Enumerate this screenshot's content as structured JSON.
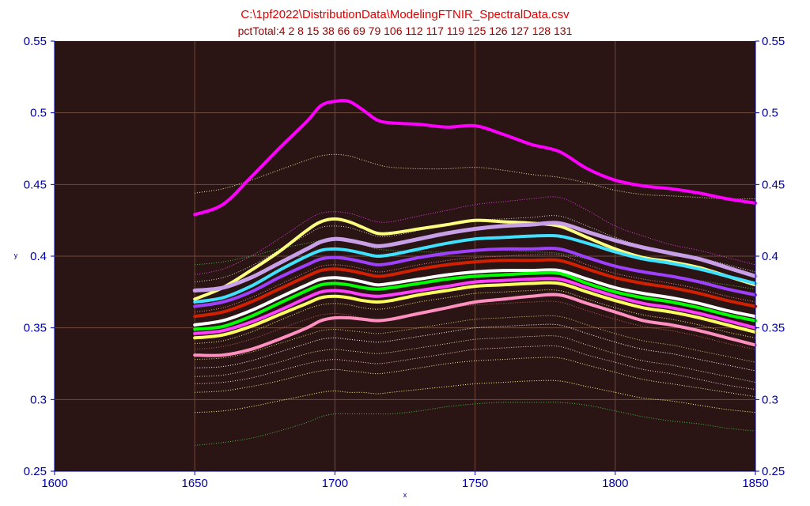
{
  "chart_data": {
    "type": "line",
    "title": "C:\\1pf2022\\DistributionData\\ModelingFTNIR_SpectralData.csv",
    "subtitle": "pctTotal:4 2 8 15 38 66 69 79 106 112 117 119 125 126 127 128 131",
    "xlabel": "x",
    "ylabel": "y",
    "xlim": [
      1600,
      1850
    ],
    "ylim": [
      0.25,
      0.55
    ],
    "x_ticks": [
      "1600",
      "1650",
      "1700",
      "1750",
      "1800",
      "1850"
    ],
    "y_ticks": [
      "0.25",
      "0.3",
      "0.35",
      "0.4",
      "0.45",
      "0.5",
      "0.55"
    ],
    "grid": true,
    "legend": "none",
    "x": [
      1650,
      1660,
      1670,
      1680,
      1690,
      1695,
      1700,
      1705,
      1710,
      1715,
      1720,
      1730,
      1740,
      1750,
      1760,
      1770,
      1780,
      1790,
      1800,
      1810,
      1820,
      1830,
      1840,
      1850
    ],
    "highlighted_series": [
      {
        "color": "#ff00ff",
        "width": 4,
        "values": [
          0.429,
          0.436,
          0.455,
          0.475,
          0.494,
          0.505,
          0.508,
          0.508,
          0.502,
          0.495,
          0.493,
          0.492,
          0.49,
          0.491,
          0.485,
          0.478,
          0.473,
          0.461,
          0.453,
          0.449,
          0.447,
          0.444,
          0.44,
          0.437
        ]
      },
      {
        "color": "#ffff80",
        "width": 4,
        "values": [
          0.37,
          0.378,
          0.39,
          0.403,
          0.418,
          0.424,
          0.426,
          0.424,
          0.42,
          0.416,
          0.416,
          0.419,
          0.422,
          0.425,
          0.424,
          0.423,
          0.421,
          0.413,
          0.405,
          0.399,
          0.396,
          0.392,
          0.386,
          0.38
        ]
      },
      {
        "color": "#c8a0e8",
        "width": 5,
        "values": [
          0.376,
          0.378,
          0.385,
          0.395,
          0.405,
          0.41,
          0.412,
          0.411,
          0.409,
          0.407,
          0.408,
          0.412,
          0.416,
          0.419,
          0.421,
          0.422,
          0.423,
          0.417,
          0.411,
          0.406,
          0.402,
          0.398,
          0.392,
          0.386
        ]
      },
      {
        "color": "#40e0ff",
        "width": 4,
        "values": [
          0.368,
          0.371,
          0.379,
          0.39,
          0.4,
          0.404,
          0.405,
          0.404,
          0.402,
          0.4,
          0.401,
          0.405,
          0.409,
          0.412,
          0.413,
          0.414,
          0.414,
          0.409,
          0.403,
          0.398,
          0.395,
          0.391,
          0.386,
          0.381
        ]
      },
      {
        "color": "#a040ff",
        "width": 4,
        "values": [
          0.365,
          0.368,
          0.375,
          0.385,
          0.394,
          0.398,
          0.399,
          0.398,
          0.396,
          0.394,
          0.395,
          0.399,
          0.402,
          0.404,
          0.405,
          0.405,
          0.405,
          0.399,
          0.393,
          0.389,
          0.386,
          0.382,
          0.377,
          0.373
        ]
      },
      {
        "color": "#d02000",
        "width": 4,
        "values": [
          0.358,
          0.361,
          0.368,
          0.377,
          0.386,
          0.39,
          0.391,
          0.39,
          0.388,
          0.386,
          0.387,
          0.391,
          0.394,
          0.396,
          0.397,
          0.397,
          0.397,
          0.391,
          0.385,
          0.381,
          0.378,
          0.374,
          0.369,
          0.365
        ]
      },
      {
        "color": "#ffffff",
        "width": 4,
        "values": [
          0.352,
          0.355,
          0.362,
          0.371,
          0.38,
          0.384,
          0.385,
          0.384,
          0.382,
          0.38,
          0.381,
          0.384,
          0.387,
          0.389,
          0.39,
          0.39,
          0.39,
          0.384,
          0.378,
          0.374,
          0.371,
          0.367,
          0.362,
          0.358
        ]
      },
      {
        "color": "#00ff00",
        "width": 4,
        "values": [
          0.349,
          0.351,
          0.358,
          0.367,
          0.376,
          0.38,
          0.381,
          0.38,
          0.378,
          0.377,
          0.378,
          0.381,
          0.384,
          0.386,
          0.387,
          0.388,
          0.388,
          0.381,
          0.375,
          0.371,
          0.368,
          0.364,
          0.359,
          0.355
        ]
      },
      {
        "color": "#ff40ff",
        "width": 4,
        "values": [
          0.346,
          0.348,
          0.354,
          0.362,
          0.371,
          0.375,
          0.376,
          0.375,
          0.373,
          0.372,
          0.373,
          0.376,
          0.379,
          0.382,
          0.383,
          0.384,
          0.384,
          0.378,
          0.372,
          0.367,
          0.364,
          0.36,
          0.355,
          0.35
        ]
      },
      {
        "color": "#ffff60",
        "width": 4,
        "values": [
          0.343,
          0.345,
          0.351,
          0.359,
          0.367,
          0.371,
          0.372,
          0.371,
          0.369,
          0.368,
          0.369,
          0.373,
          0.376,
          0.379,
          0.38,
          0.381,
          0.381,
          0.375,
          0.369,
          0.364,
          0.361,
          0.357,
          0.352,
          0.347
        ]
      },
      {
        "color": "#ff90c0",
        "width": 4,
        "values": [
          0.331,
          0.331,
          0.335,
          0.342,
          0.35,
          0.355,
          0.357,
          0.357,
          0.356,
          0.355,
          0.356,
          0.36,
          0.364,
          0.368,
          0.37,
          0.372,
          0.373,
          0.367,
          0.361,
          0.355,
          0.352,
          0.348,
          0.343,
          0.338
        ]
      }
    ],
    "background_series": [
      {
        "color": "#e8e8a0",
        "values": [
          0.444,
          0.447,
          0.453,
          0.46,
          0.467,
          0.47,
          0.471,
          0.47,
          0.467,
          0.464,
          0.462,
          0.461,
          0.461,
          0.462,
          0.46,
          0.457,
          0.455,
          0.451,
          0.446,
          0.443,
          0.442,
          0.441,
          0.44,
          0.44
        ]
      },
      {
        "color": "#e040e0",
        "values": [
          0.387,
          0.391,
          0.4,
          0.412,
          0.425,
          0.43,
          0.431,
          0.43,
          0.427,
          0.424,
          0.424,
          0.428,
          0.432,
          0.436,
          0.438,
          0.44,
          0.441,
          0.432,
          0.421,
          0.414,
          0.408,
          0.404,
          0.399,
          0.394
        ]
      },
      {
        "color": "#d0d0d0",
        "values": [
          0.382,
          0.385,
          0.393,
          0.404,
          0.415,
          0.42,
          0.421,
          0.42,
          0.417,
          0.414,
          0.414,
          0.418,
          0.422,
          0.425,
          0.426,
          0.427,
          0.428,
          0.421,
          0.413,
          0.407,
          0.403,
          0.399,
          0.394,
          0.389
        ]
      },
      {
        "color": "#ff8080",
        "values": [
          0.361,
          0.364,
          0.371,
          0.38,
          0.389,
          0.393,
          0.394,
          0.393,
          0.391,
          0.389,
          0.39,
          0.394,
          0.397,
          0.399,
          0.4,
          0.401,
          0.401,
          0.394,
          0.388,
          0.384,
          0.381,
          0.377,
          0.372,
          0.368
        ]
      },
      {
        "color": "#40c040",
        "values": [
          0.394,
          0.396,
          0.4,
          0.405,
          0.409,
          0.411,
          0.411,
          0.41,
          0.408,
          0.405,
          0.404,
          0.403,
          0.403,
          0.404,
          0.404,
          0.403,
          0.402,
          0.398,
          0.393,
          0.389,
          0.386,
          0.383,
          0.38,
          0.377
        ]
      },
      {
        "color": "#f0f080",
        "values": [
          0.339,
          0.341,
          0.347,
          0.355,
          0.363,
          0.366,
          0.367,
          0.366,
          0.364,
          0.363,
          0.364,
          0.368,
          0.371,
          0.374,
          0.375,
          0.376,
          0.376,
          0.37,
          0.364,
          0.359,
          0.356,
          0.352,
          0.347,
          0.343
        ]
      },
      {
        "color": "#c06060",
        "values": [
          0.335,
          0.337,
          0.342,
          0.349,
          0.356,
          0.359,
          0.36,
          0.359,
          0.357,
          0.356,
          0.357,
          0.361,
          0.364,
          0.366,
          0.367,
          0.368,
          0.368,
          0.362,
          0.356,
          0.351,
          0.348,
          0.344,
          0.339,
          0.335
        ]
      },
      {
        "color": "#d0d070",
        "values": [
          0.328,
          0.329,
          0.333,
          0.339,
          0.345,
          0.348,
          0.349,
          0.348,
          0.347,
          0.346,
          0.347,
          0.35,
          0.353,
          0.356,
          0.357,
          0.358,
          0.358,
          0.352,
          0.346,
          0.341,
          0.338,
          0.334,
          0.33,
          0.326
        ]
      },
      {
        "color": "#ffffff",
        "values": [
          0.322,
          0.323,
          0.327,
          0.333,
          0.339,
          0.342,
          0.343,
          0.342,
          0.341,
          0.34,
          0.341,
          0.344,
          0.347,
          0.35,
          0.351,
          0.352,
          0.352,
          0.346,
          0.34,
          0.335,
          0.332,
          0.328,
          0.324,
          0.32
        ]
      },
      {
        "color": "#e0e0b0",
        "values": [
          0.316,
          0.317,
          0.321,
          0.326,
          0.332,
          0.334,
          0.335,
          0.334,
          0.333,
          0.332,
          0.333,
          0.336,
          0.339,
          0.342,
          0.343,
          0.344,
          0.344,
          0.338,
          0.332,
          0.327,
          0.324,
          0.32,
          0.316,
          0.312
        ]
      },
      {
        "color": "#ffd0d0",
        "values": [
          0.311,
          0.312,
          0.315,
          0.32,
          0.325,
          0.327,
          0.328,
          0.327,
          0.326,
          0.325,
          0.326,
          0.329,
          0.332,
          0.335,
          0.336,
          0.337,
          0.337,
          0.331,
          0.326,
          0.321,
          0.318,
          0.314,
          0.31,
          0.307
        ]
      },
      {
        "color": "#f0f0a0",
        "values": [
          0.305,
          0.306,
          0.309,
          0.313,
          0.318,
          0.32,
          0.321,
          0.32,
          0.319,
          0.318,
          0.319,
          0.322,
          0.325,
          0.327,
          0.328,
          0.329,
          0.329,
          0.324,
          0.319,
          0.314,
          0.311,
          0.308,
          0.305,
          0.302
        ]
      },
      {
        "color": "#ffff80",
        "values": [
          0.291,
          0.292,
          0.295,
          0.299,
          0.303,
          0.305,
          0.306,
          0.305,
          0.305,
          0.304,
          0.305,
          0.307,
          0.309,
          0.311,
          0.312,
          0.313,
          0.313,
          0.309,
          0.305,
          0.301,
          0.299,
          0.296,
          0.293,
          0.291
        ]
      },
      {
        "color": "#40c040",
        "values": [
          0.268,
          0.27,
          0.273,
          0.278,
          0.284,
          0.288,
          0.29,
          0.29,
          0.29,
          0.29,
          0.29,
          0.292,
          0.295,
          0.297,
          0.298,
          0.298,
          0.298,
          0.296,
          0.292,
          0.288,
          0.285,
          0.283,
          0.28,
          0.278
        ]
      }
    ]
  }
}
